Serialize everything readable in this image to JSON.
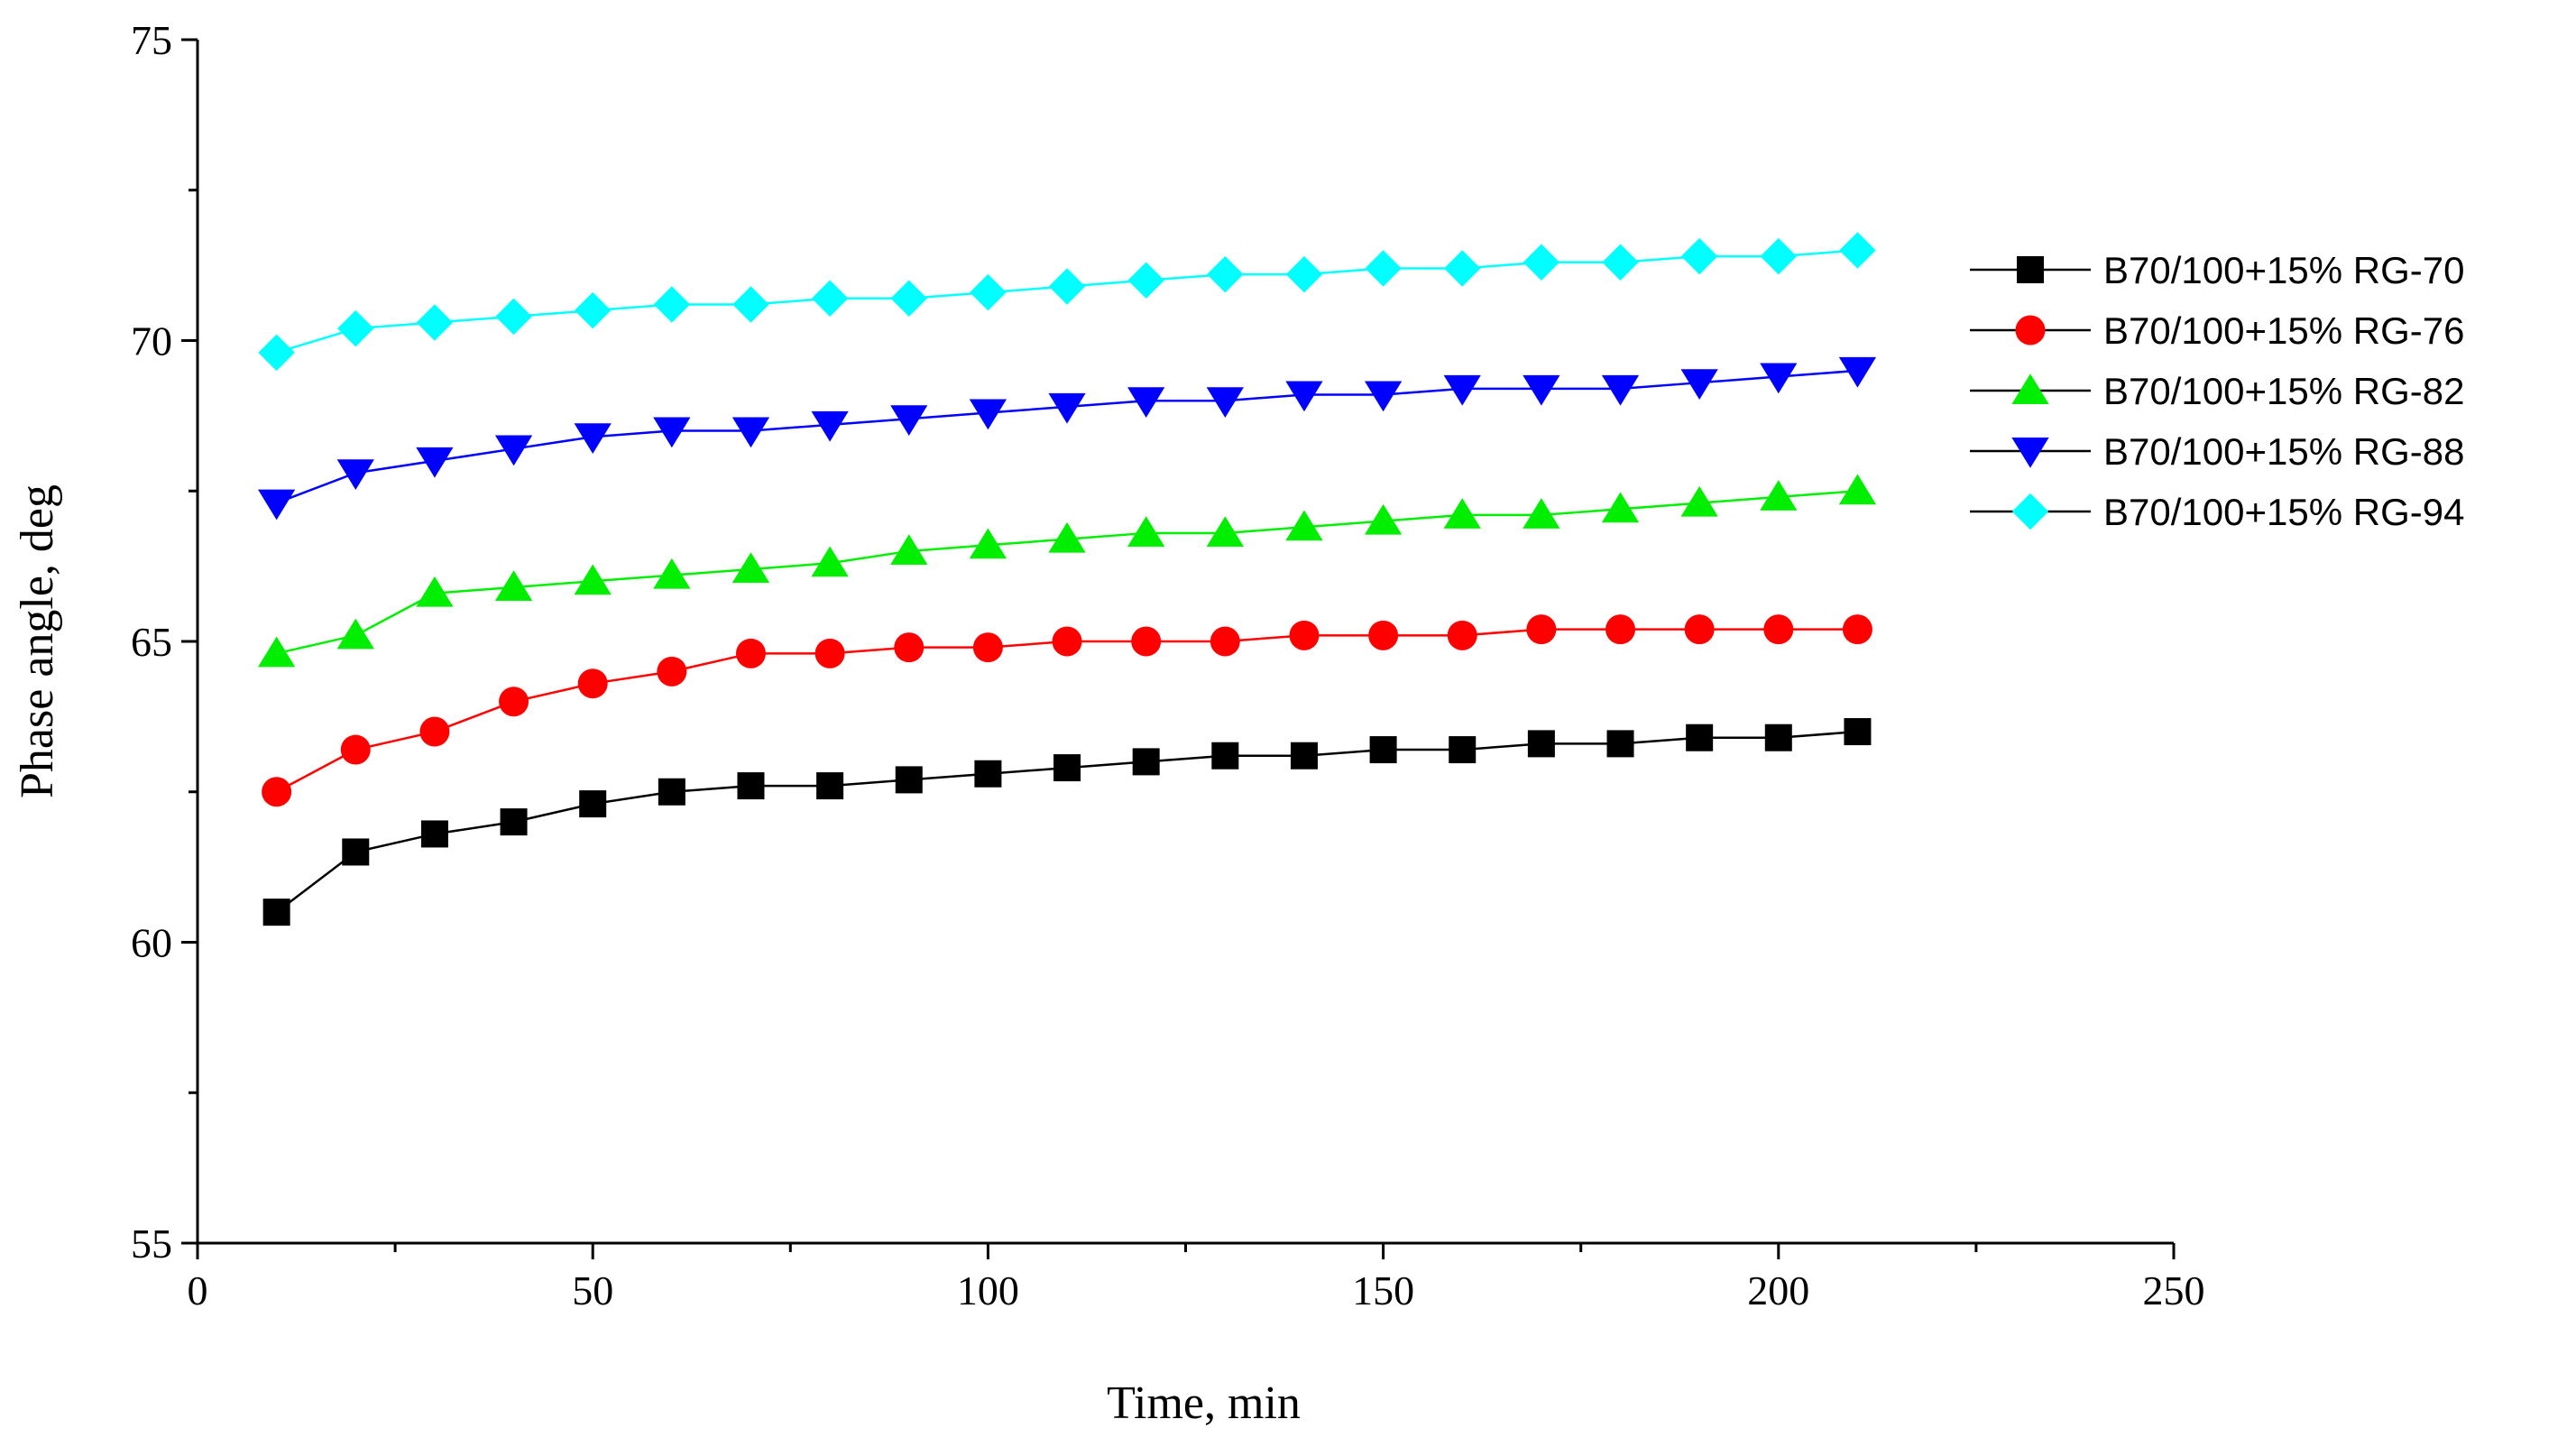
{
  "chart_data": {
    "type": "line",
    "title": "",
    "xlabel": "Time, min",
    "ylabel": "Phase angle, deg",
    "xlim": [
      0,
      250
    ],
    "ylim": [
      55,
      75
    ],
    "xticks": [
      0,
      50,
      100,
      150,
      200,
      250
    ],
    "yticks": [
      55,
      60,
      65,
      70,
      75
    ],
    "grid": false,
    "legend_position": "right",
    "x": [
      10,
      20,
      30,
      40,
      50,
      60,
      70,
      80,
      90,
      100,
      110,
      120,
      130,
      140,
      150,
      160,
      170,
      180,
      190,
      200,
      210
    ],
    "series": [
      {
        "name": "B70/100+15% RG-70",
        "color": "#000000",
        "marker": "square",
        "values": [
          60.5,
          61.5,
          61.8,
          62.0,
          62.3,
          62.5,
          62.6,
          62.6,
          62.7,
          62.8,
          62.9,
          63.0,
          63.1,
          63.1,
          63.2,
          63.2,
          63.3,
          63.3,
          63.4,
          63.4,
          63.5
        ]
      },
      {
        "name": "B70/100+15% RG-76",
        "color": "#ff0000",
        "marker": "circle",
        "values": [
          62.5,
          63.2,
          63.5,
          64.0,
          64.3,
          64.5,
          64.8,
          64.8,
          64.9,
          64.9,
          65.0,
          65.0,
          65.0,
          65.1,
          65.1,
          65.1,
          65.2,
          65.2,
          65.2,
          65.2,
          65.2
        ]
      },
      {
        "name": "B70/100+15% RG-82",
        "color": "#00ee00",
        "marker": "triangle-up",
        "values": [
          64.8,
          65.1,
          65.8,
          65.9,
          66.0,
          66.1,
          66.2,
          66.3,
          66.5,
          66.6,
          66.7,
          66.8,
          66.8,
          66.9,
          67.0,
          67.1,
          67.1,
          67.2,
          67.3,
          67.4,
          67.5
        ]
      },
      {
        "name": "B70/100+15% RG-88",
        "color": "#0000ff",
        "marker": "triangle-down",
        "values": [
          67.3,
          67.8,
          68.0,
          68.2,
          68.4,
          68.5,
          68.5,
          68.6,
          68.7,
          68.8,
          68.9,
          69.0,
          69.0,
          69.1,
          69.1,
          69.2,
          69.2,
          69.2,
          69.3,
          69.4,
          69.5
        ]
      },
      {
        "name": "B70/100+15% RG-94",
        "color": "#00ffff",
        "marker": "diamond",
        "values": [
          69.8,
          70.2,
          70.3,
          70.4,
          70.5,
          70.6,
          70.6,
          70.7,
          70.7,
          70.8,
          70.9,
          71.0,
          71.1,
          71.1,
          71.2,
          71.2,
          71.3,
          71.3,
          71.4,
          71.4,
          71.5
        ]
      }
    ]
  }
}
